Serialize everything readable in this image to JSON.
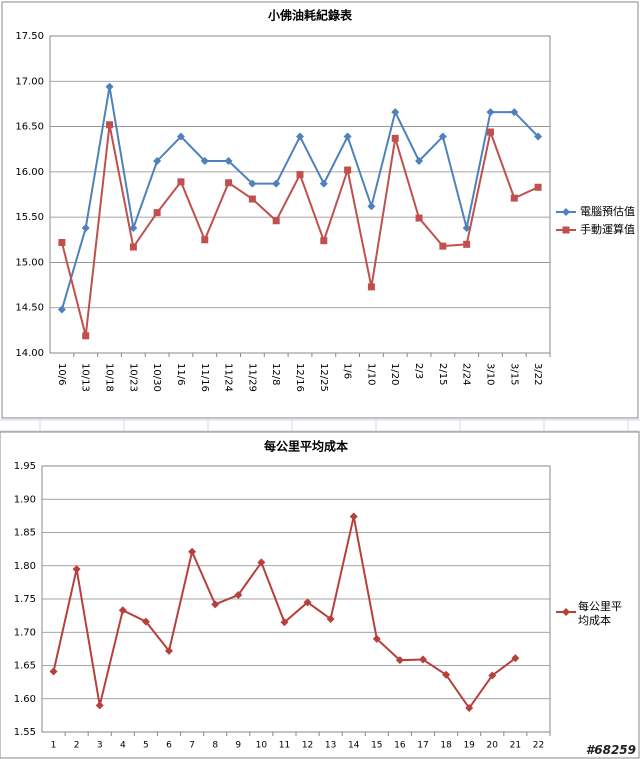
{
  "chart_data": [
    {
      "type": "line",
      "title": "小佛油耗紀錄表",
      "categories": [
        "10/6",
        "10/13",
        "10/18",
        "10/23",
        "10/30",
        "11/6",
        "11/16",
        "11/24",
        "11/29",
        "12/8",
        "12/16",
        "12/25",
        "1/6",
        "1/10",
        "1/20",
        "2/3",
        "2/15",
        "2/24",
        "3/10",
        "3/15",
        "3/22"
      ],
      "series": [
        {
          "name": "電腦預估值",
          "color": "#4f81bd",
          "marker": "diamond",
          "values": [
            14.48,
            15.38,
            16.94,
            15.38,
            16.12,
            16.39,
            16.12,
            16.12,
            15.87,
            15.87,
            16.39,
            15.87,
            16.39,
            15.62,
            16.66,
            16.12,
            16.39,
            15.38,
            16.66,
            16.66,
            16.39
          ]
        },
        {
          "name": "手動運算值",
          "color": "#c0504d",
          "marker": "square",
          "values": [
            15.22,
            14.19,
            16.52,
            15.17,
            15.55,
            15.89,
            15.25,
            15.88,
            15.7,
            15.46,
            15.97,
            15.24,
            16.02,
            14.73,
            16.37,
            15.49,
            15.18,
            15.2,
            16.44,
            15.71,
            15.83
          ]
        }
      ],
      "ylim": [
        14,
        17.5
      ],
      "yticks": [
        {
          "value": 14,
          "label": "14.00"
        },
        {
          "value": 14.5,
          "label": "14.50"
        },
        {
          "value": 15,
          "label": "15.00"
        },
        {
          "value": 15.5,
          "label": "15.50"
        },
        {
          "value": 16,
          "label": "16.00"
        },
        {
          "value": 16.5,
          "label": "16.50"
        },
        {
          "value": 17,
          "label": "17.00"
        },
        {
          "value": 17.5,
          "label": "17.50"
        }
      ],
      "grid": true,
      "legend": "right"
    },
    {
      "type": "line",
      "title": "每公里平均成本",
      "categories": [
        1,
        2,
        3,
        4,
        5,
        6,
        7,
        8,
        9,
        10,
        11,
        12,
        13,
        14,
        15,
        16,
        17,
        18,
        19,
        20,
        21,
        22
      ],
      "series": [
        {
          "name": "每公里平均成本",
          "color": "#b5403c",
          "marker": "diamond",
          "values": [
            1.641,
            1.795,
            1.59,
            1.733,
            1.716,
            1.672,
            1.821,
            1.742,
            1.756,
            1.805,
            1.715,
            1.745,
            1.72,
            1.874,
            1.69,
            1.658,
            1.659,
            1.636,
            1.586,
            1.635,
            1.661,
            null
          ]
        }
      ],
      "ylim": [
        1.55,
        1.95
      ],
      "yticks": [
        1.55,
        {
          "value": 1.6,
          "label": "1.60"
        },
        1.65,
        {
          "value": 1.7,
          "label": "1.70"
        },
        1.75,
        {
          "value": 1.8,
          "label": "1.80"
        },
        1.85,
        {
          "value": 1.9,
          "label": "1.90"
        },
        1.95
      ],
      "grid": true,
      "legend": "right"
    }
  ],
  "watermark": "#68259"
}
